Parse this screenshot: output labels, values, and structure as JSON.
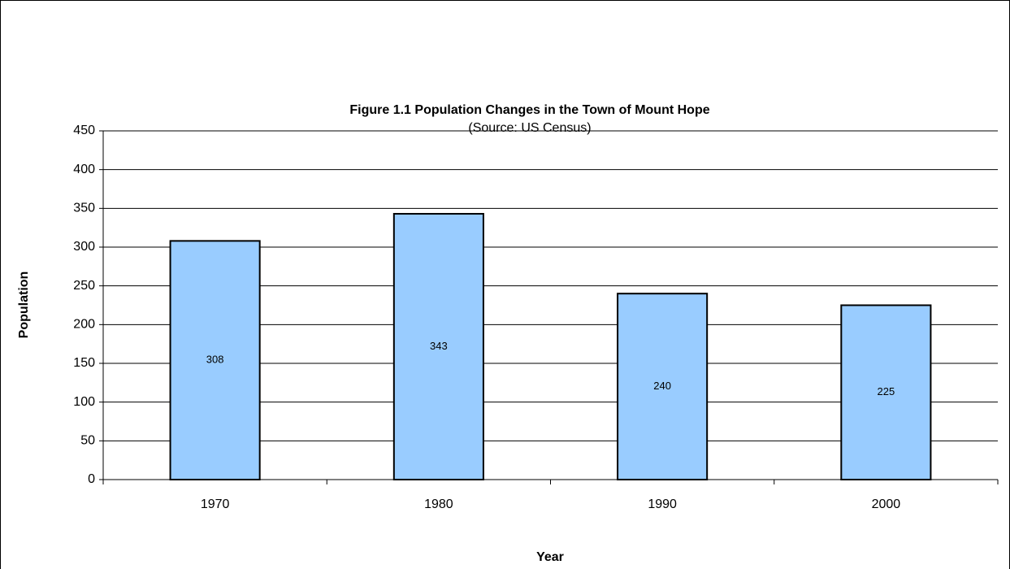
{
  "chart_data": {
    "type": "bar",
    "title": "Figure 1.1 Population Changes in the Town of Mount Hope",
    "subtitle": "(Source: US Census)",
    "x_label": "Year",
    "y_label": "Population",
    "categories": [
      "1970",
      "1980",
      "1990",
      "2000"
    ],
    "values": [
      308,
      343,
      240,
      225
    ],
    "color": "#99ccff",
    "ylim": [
      0,
      450
    ],
    "yticks": [
      0,
      50,
      100,
      150,
      200,
      250,
      300,
      350,
      400,
      450
    ],
    "grid": true
  }
}
